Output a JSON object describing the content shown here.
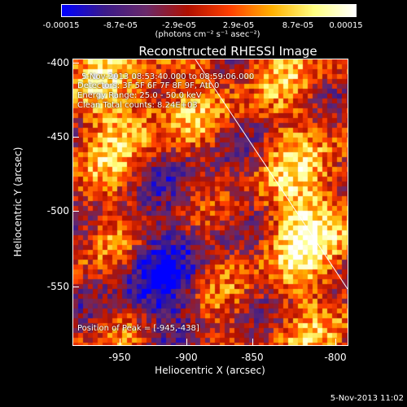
{
  "colorbar": {
    "ticks": [
      "-0.00015",
      "-8.7e-05",
      "-2.9e-05",
      "2.9e-05",
      "8.7e-05",
      "0.00015"
    ],
    "unit_label": "(photons cm⁻² s⁻¹ asec⁻²)",
    "colors": [
      "#0000ff",
      "#3b1a8a",
      "#6a2a6a",
      "#b01000",
      "#ff4000",
      "#ffb000",
      "#ffff80",
      "#ffffff"
    ]
  },
  "plot": {
    "title": "Reconstructed RHESSI Image",
    "xlabel": "Heliocentric X (arcsec)",
    "ylabel": "Heliocentric Y (arcsec)",
    "xticks": [
      "-950",
      "-900",
      "-850",
      "-800"
    ],
    "yticks": [
      "-400",
      "-450",
      "-500",
      "-550"
    ],
    "annotation": {
      "time_range": "5-Nov-2013 08:53:40.000 to 08:59:06.000",
      "detectors": "Detectors: 3F 5F 6F 7F 8F 9F, Att 0",
      "energy": "Energy Range: 25.0 - 50.0 keV",
      "method": "Clean    Total counts: 8.24E+03",
      "peak": "Position of Peak = [-945,-438]"
    }
  },
  "footer": {
    "timestamp": "5-Nov-2013 11:02"
  }
}
